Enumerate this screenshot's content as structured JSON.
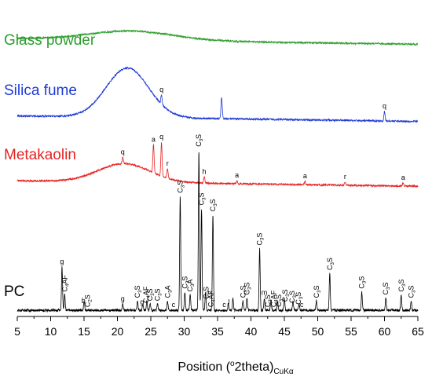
{
  "chart_data": {
    "type": "line",
    "title": "",
    "xlabel": "Position (°2theta)CuKα",
    "xlabel_parts": {
      "pre": "Position (",
      "sup": "o",
      "mid": "2theta)",
      "sub": "CuKα"
    },
    "ylabel": "",
    "xlim": [
      5,
      65
    ],
    "x_ticks": [
      5,
      10,
      15,
      20,
      25,
      30,
      35,
      40,
      45,
      50,
      55,
      60,
      65
    ],
    "x_tick_labels": [
      "5",
      "10",
      "15",
      "20",
      "25",
      "30",
      "35",
      "40",
      "45",
      "50",
      "55",
      "60",
      "65"
    ],
    "grid": false,
    "stacked_offset": true,
    "series": [
      {
        "name": "Glass powder",
        "color": "#2e9e2e",
        "baseline": 0.9,
        "amorphous_humps": [
          {
            "center": 22,
            "width": 9,
            "height": 0.03
          }
        ],
        "peaks": [],
        "annotations": []
      },
      {
        "name": "Silica fume",
        "color": "#1f3ad6",
        "baseline": 0.65,
        "amorphous_humps": [
          {
            "center": 21.5,
            "width": 4.5,
            "height": 0.16
          }
        ],
        "peaks": [
          {
            "x": 26.6,
            "h": 0.03
          },
          {
            "x": 35.6,
            "h": 0.07
          },
          {
            "x": 60.0,
            "h": 0.03
          }
        ],
        "annotations": [
          {
            "x": 26.6,
            "text": "q"
          },
          {
            "x": 60.0,
            "text": "q"
          }
        ]
      },
      {
        "name": "Metakaolin",
        "color": "#e52222",
        "baseline": 0.44,
        "amorphous_humps": [
          {
            "center": 21.0,
            "width": 5.5,
            "height": 0.06
          }
        ],
        "peaks": [
          {
            "x": 20.8,
            "h": 0.02
          },
          {
            "x": 25.4,
            "h": 0.09
          },
          {
            "x": 26.6,
            "h": 0.11
          },
          {
            "x": 27.5,
            "h": 0.03
          },
          {
            "x": 33.0,
            "h": 0.02
          },
          {
            "x": 37.9,
            "h": 0.01
          },
          {
            "x": 48.1,
            "h": 0.01
          },
          {
            "x": 54.1,
            "h": 0.01
          },
          {
            "x": 62.8,
            "h": 0.01
          }
        ],
        "annotations": [
          {
            "x": 20.8,
            "text": "q"
          },
          {
            "x": 25.4,
            "text": "a"
          },
          {
            "x": 26.6,
            "text": "q"
          },
          {
            "x": 27.5,
            "text": "r"
          },
          {
            "x": 33.0,
            "text": "h"
          },
          {
            "x": 37.9,
            "text": "a"
          },
          {
            "x": 48.1,
            "text": "a"
          },
          {
            "x": 54.1,
            "text": "r"
          },
          {
            "x": 62.8,
            "text": "a"
          }
        ]
      },
      {
        "name": "PC",
        "color": "#000000",
        "baseline": 0.02,
        "amorphous_humps": [],
        "peaks": [
          {
            "x": 11.7,
            "h": 0.14
          },
          {
            "x": 12.1,
            "h": 0.05
          },
          {
            "x": 15.0,
            "h": 0.03
          },
          {
            "x": 20.8,
            "h": 0.02
          },
          {
            "x": 23.0,
            "h": 0.03
          },
          {
            "x": 23.8,
            "h": 0.02
          },
          {
            "x": 24.4,
            "h": 0.03
          },
          {
            "x": 24.9,
            "h": 0.02
          },
          {
            "x": 26.0,
            "h": 0.02
          },
          {
            "x": 27.5,
            "h": 0.03
          },
          {
            "x": 29.4,
            "h": 0.37
          },
          {
            "x": 30.1,
            "h": 0.06
          },
          {
            "x": 30.9,
            "h": 0.05
          },
          {
            "x": 32.2,
            "h": 0.52
          },
          {
            "x": 32.6,
            "h": 0.33
          },
          {
            "x": 33.2,
            "h": 0.06
          },
          {
            "x": 34.3,
            "h": 0.31
          },
          {
            "x": 36.6,
            "h": 0.02
          },
          {
            "x": 37.3,
            "h": 0.04
          },
          {
            "x": 38.8,
            "h": 0.03
          },
          {
            "x": 39.4,
            "h": 0.04
          },
          {
            "x": 41.3,
            "h": 0.2
          },
          {
            "x": 42.0,
            "h": 0.04
          },
          {
            "x": 43.0,
            "h": 0.03
          },
          {
            "x": 44.0,
            "h": 0.03
          },
          {
            "x": 45.0,
            "h": 0.04
          },
          {
            "x": 46.3,
            "h": 0.03
          },
          {
            "x": 47.2,
            "h": 0.02
          },
          {
            "x": 49.8,
            "h": 0.03
          },
          {
            "x": 51.8,
            "h": 0.12
          },
          {
            "x": 56.6,
            "h": 0.06
          },
          {
            "x": 60.2,
            "h": 0.04
          },
          {
            "x": 62.5,
            "h": 0.05
          },
          {
            "x": 64.0,
            "h": 0.03
          }
        ],
        "annotations": [
          {
            "x": 11.7,
            "text": "g"
          },
          {
            "x": 12.1,
            "text": "C4AF"
          },
          {
            "x": 14.9,
            "text": "b"
          },
          {
            "x": 15.5,
            "text": "C2S"
          },
          {
            "x": 20.8,
            "text": "g"
          },
          {
            "x": 23.0,
            "text": "C3S"
          },
          {
            "x": 23.7,
            "text": "g"
          },
          {
            "x": 24.3,
            "text": "C4AF"
          },
          {
            "x": 24.9,
            "text": "C3S"
          },
          {
            "x": 26.0,
            "text": "C3S"
          },
          {
            "x": 27.5,
            "text": "C3A"
          },
          {
            "x": 28.4,
            "text": "c"
          },
          {
            "x": 29.4,
            "text": "C3S"
          },
          {
            "x": 30.1,
            "text": "C3S"
          },
          {
            "x": 30.9,
            "text": "C3A"
          },
          {
            "x": 32.2,
            "text": "C3S"
          },
          {
            "x": 32.6,
            "text": "C3S"
          },
          {
            "x": 33.3,
            "text": "C3S"
          },
          {
            "x": 34.0,
            "text": "C4AF"
          },
          {
            "x": 34.3,
            "text": "C3S"
          },
          {
            "x": 36.0,
            "text": "c"
          },
          {
            "x": 36.7,
            "text": "l"
          },
          {
            "x": 38.8,
            "text": "C3S"
          },
          {
            "x": 39.4,
            "text": "C3S"
          },
          {
            "x": 41.3,
            "text": "C3S"
          },
          {
            "x": 42.0,
            "text": "m"
          },
          {
            "x": 42.5,
            "text": "C3S"
          },
          {
            "x": 43.4,
            "text": "C4AF"
          },
          {
            "x": 44.2,
            "text": "C3S"
          },
          {
            "x": 45.1,
            "text": "C3S"
          },
          {
            "x": 46.2,
            "text": "C3S"
          },
          {
            "x": 47.1,
            "text": "C3S"
          },
          {
            "x": 47.6,
            "text": "c"
          },
          {
            "x": 49.8,
            "text": "C3S"
          },
          {
            "x": 51.8,
            "text": "C3S"
          },
          {
            "x": 56.6,
            "text": "C3S"
          },
          {
            "x": 60.2,
            "text": "C3S"
          },
          {
            "x": 62.5,
            "text": "C3S"
          },
          {
            "x": 64.0,
            "text": "C3S"
          }
        ]
      }
    ]
  }
}
